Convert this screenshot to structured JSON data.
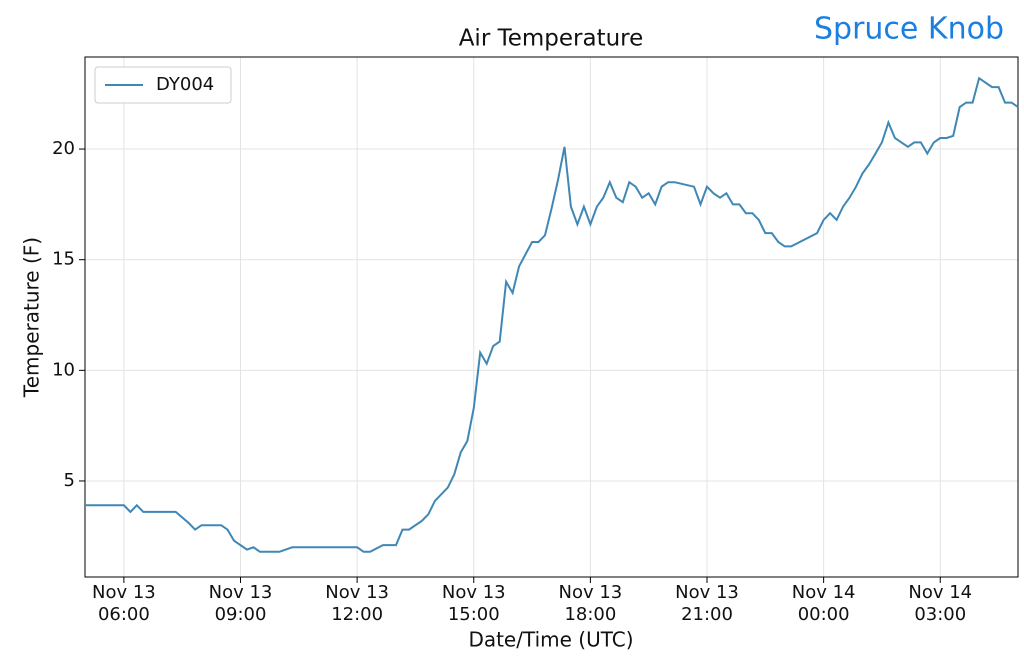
{
  "chart_data": {
    "type": "line",
    "title": "Air Temperature",
    "annotation": "Spruce Knob",
    "xlabel": "Date/Time (UTC)",
    "ylabel": "Temperature (F)",
    "x": [
      "Nov 13 05:00",
      "Nov 13 05:20",
      "Nov 13 05:40",
      "Nov 13 06:00",
      "Nov 13 06:10",
      "Nov 13 06:20",
      "Nov 13 06:30",
      "Nov 13 07:00",
      "Nov 13 07:20",
      "Nov 13 07:40",
      "Nov 13 07:50",
      "Nov 13 08:00",
      "Nov 13 08:30",
      "Nov 13 08:40",
      "Nov 13 08:50",
      "Nov 13 09:10",
      "Nov 13 09:20",
      "Nov 13 09:30",
      "Nov 13 10:00",
      "Nov 13 10:20",
      "Nov 13 12:00",
      "Nov 13 12:10",
      "Nov 13 12:20",
      "Nov 13 12:40",
      "Nov 13 13:00",
      "Nov 13 13:10",
      "Nov 13 13:20",
      "Nov 13 13:40",
      "Nov 13 13:50",
      "Nov 13 14:00",
      "Nov 13 14:20",
      "Nov 13 14:30",
      "Nov 13 14:40",
      "Nov 13 14:50",
      "Nov 13 15:00",
      "Nov 13 15:10",
      "Nov 13 15:20",
      "Nov 13 15:30",
      "Nov 13 15:40",
      "Nov 13 15:50",
      "Nov 13 16:00",
      "Nov 13 16:10",
      "Nov 13 16:30",
      "Nov 13 16:40",
      "Nov 13 16:50",
      "Nov 13 17:00",
      "Nov 13 17:10",
      "Nov 13 17:20",
      "Nov 13 17:30",
      "Nov 13 17:40",
      "Nov 13 17:50",
      "Nov 13 18:00",
      "Nov 13 18:10",
      "Nov 13 18:20",
      "Nov 13 18:30",
      "Nov 13 18:40",
      "Nov 13 18:50",
      "Nov 13 19:00",
      "Nov 13 19:10",
      "Nov 13 19:20",
      "Nov 13 19:30",
      "Nov 13 19:40",
      "Nov 13 19:50",
      "Nov 13 20:00",
      "Nov 13 20:10",
      "Nov 13 20:40",
      "Nov 13 20:50",
      "Nov 13 21:00",
      "Nov 13 21:10",
      "Nov 13 21:20",
      "Nov 13 21:30",
      "Nov 13 21:40",
      "Nov 13 21:50",
      "Nov 13 22:00",
      "Nov 13 22:10",
      "Nov 13 22:20",
      "Nov 13 22:30",
      "Nov 13 22:40",
      "Nov 13 22:50",
      "Nov 13 23:00",
      "Nov 13 23:10",
      "Nov 13 23:50",
      "Nov 14 00:00",
      "Nov 14 00:10",
      "Nov 14 00:20",
      "Nov 14 00:30",
      "Nov 14 00:40",
      "Nov 14 00:50",
      "Nov 14 01:00",
      "Nov 14 01:10",
      "Nov 14 01:20",
      "Nov 14 01:30",
      "Nov 14 01:40",
      "Nov 14 01:50",
      "Nov 14 02:00",
      "Nov 14 02:10",
      "Nov 14 02:20",
      "Nov 14 02:30",
      "Nov 14 02:40",
      "Nov 14 02:50",
      "Nov 14 03:00",
      "Nov 14 03:10",
      "Nov 14 03:20",
      "Nov 14 03:30",
      "Nov 14 03:40",
      "Nov 14 03:50",
      "Nov 14 04:00",
      "Nov 14 04:10",
      "Nov 14 04:20",
      "Nov 14 04:30",
      "Nov 14 04:40",
      "Nov 14 04:50",
      "Nov 14 05:00"
    ],
    "series": [
      {
        "name": "DY004",
        "color": "#3f87b5",
        "values": [
          3.9,
          3.9,
          3.9,
          3.9,
          3.6,
          3.9,
          3.6,
          3.6,
          3.6,
          3.1,
          2.8,
          3.0,
          3.0,
          2.8,
          2.3,
          1.9,
          2.0,
          1.8,
          1.8,
          2.0,
          2.0,
          1.8,
          1.8,
          2.1,
          2.1,
          2.8,
          2.8,
          3.2,
          3.5,
          4.1,
          4.7,
          5.3,
          6.3,
          6.8,
          8.3,
          10.8,
          10.3,
          11.1,
          11.3,
          14.0,
          13.5,
          14.7,
          15.8,
          15.8,
          16.1,
          17.3,
          18.6,
          20.1,
          17.4,
          16.6,
          17.4,
          16.6,
          17.4,
          17.8,
          18.5,
          17.8,
          17.6,
          18.5,
          18.3,
          17.8,
          18.0,
          17.5,
          18.3,
          18.5,
          18.5,
          18.3,
          17.5,
          18.3,
          18.0,
          17.8,
          18.0,
          17.5,
          17.5,
          17.1,
          17.1,
          16.8,
          16.2,
          16.2,
          15.8,
          15.6,
          15.6,
          16.2,
          16.8,
          17.1,
          16.8,
          17.4,
          17.8,
          18.3,
          18.9,
          19.3,
          19.8,
          20.3,
          21.2,
          20.5,
          20.3,
          20.1,
          20.3,
          20.3,
          19.8,
          20.3,
          20.5,
          20.5,
          20.6,
          21.9,
          22.1,
          22.1,
          23.2,
          23.0,
          22.8,
          22.8,
          22.1,
          22.1,
          21.9
        ]
      }
    ],
    "xlim": [
      "Nov 13 05:00",
      "Nov 14 05:00"
    ],
    "xticks": [
      {
        "value": "Nov 13 06:00",
        "label": [
          "Nov 13",
          "06:00"
        ]
      },
      {
        "value": "Nov 13 09:00",
        "label": [
          "Nov 13",
          "09:00"
        ]
      },
      {
        "value": "Nov 13 12:00",
        "label": [
          "Nov 13",
          "12:00"
        ]
      },
      {
        "value": "Nov 13 15:00",
        "label": [
          "Nov 13",
          "15:00"
        ]
      },
      {
        "value": "Nov 13 18:00",
        "label": [
          "Nov 13",
          "18:00"
        ]
      },
      {
        "value": "Nov 13 21:00",
        "label": [
          "Nov 13",
          "21:00"
        ]
      },
      {
        "value": "Nov 14 00:00",
        "label": [
          "Nov 14",
          "00:00"
        ]
      },
      {
        "value": "Nov 14 03:00",
        "label": [
          "Nov 14",
          "03:00"
        ]
      }
    ],
    "ylim": [
      0.66,
      24.16
    ],
    "yticks": [
      5,
      10,
      15,
      20
    ],
    "grid": true,
    "legend": "upper-left"
  }
}
